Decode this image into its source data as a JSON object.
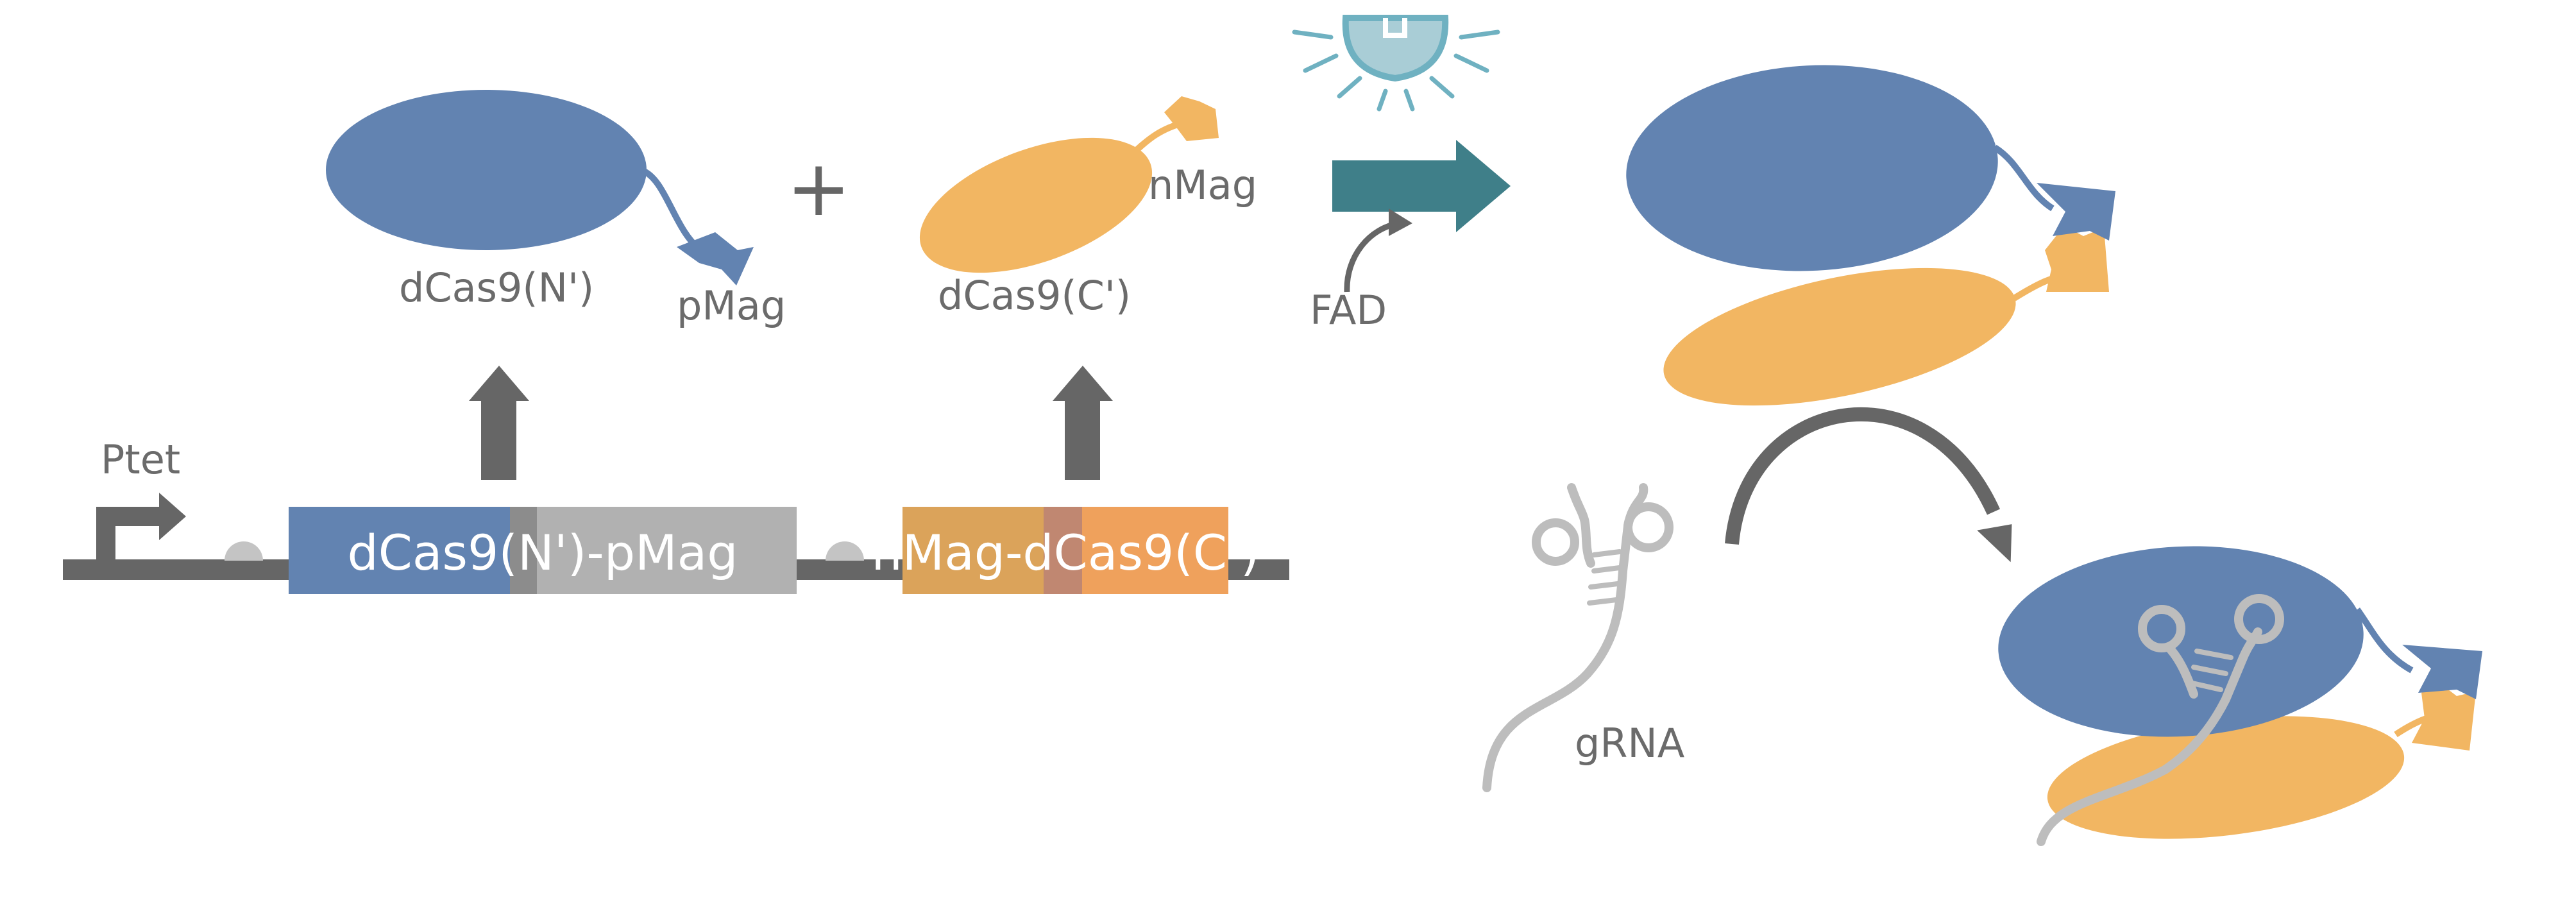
{
  "labels": {
    "promoter": "Ptet",
    "construct_1": "dCas9(N')-pMag",
    "construct_2": "nMag-dCas9(C')",
    "protein_n": "dCas9(N')",
    "tag_p": "pMag",
    "plus": "+",
    "protein_c": "dCas9(C')",
    "tag_n": "nMag",
    "cofactor": "FAD",
    "guide": "gRNA"
  },
  "colors": {
    "blue": "#6283b1",
    "orange": "#f2b662",
    "teal": "#3f7f89",
    "light_teal": "#a9cdd6",
    "dark_gray": "#666666",
    "light_gray": "#bdbdbd",
    "box_gray": "#b1b1b1",
    "box_orange_a": "#dba35a",
    "box_orange_b": "#efa15c",
    "box_linker": "#c08771"
  },
  "icons": [
    "light-bulb-icon",
    "promoter-arrow-icon",
    "guide-rna-icon"
  ]
}
